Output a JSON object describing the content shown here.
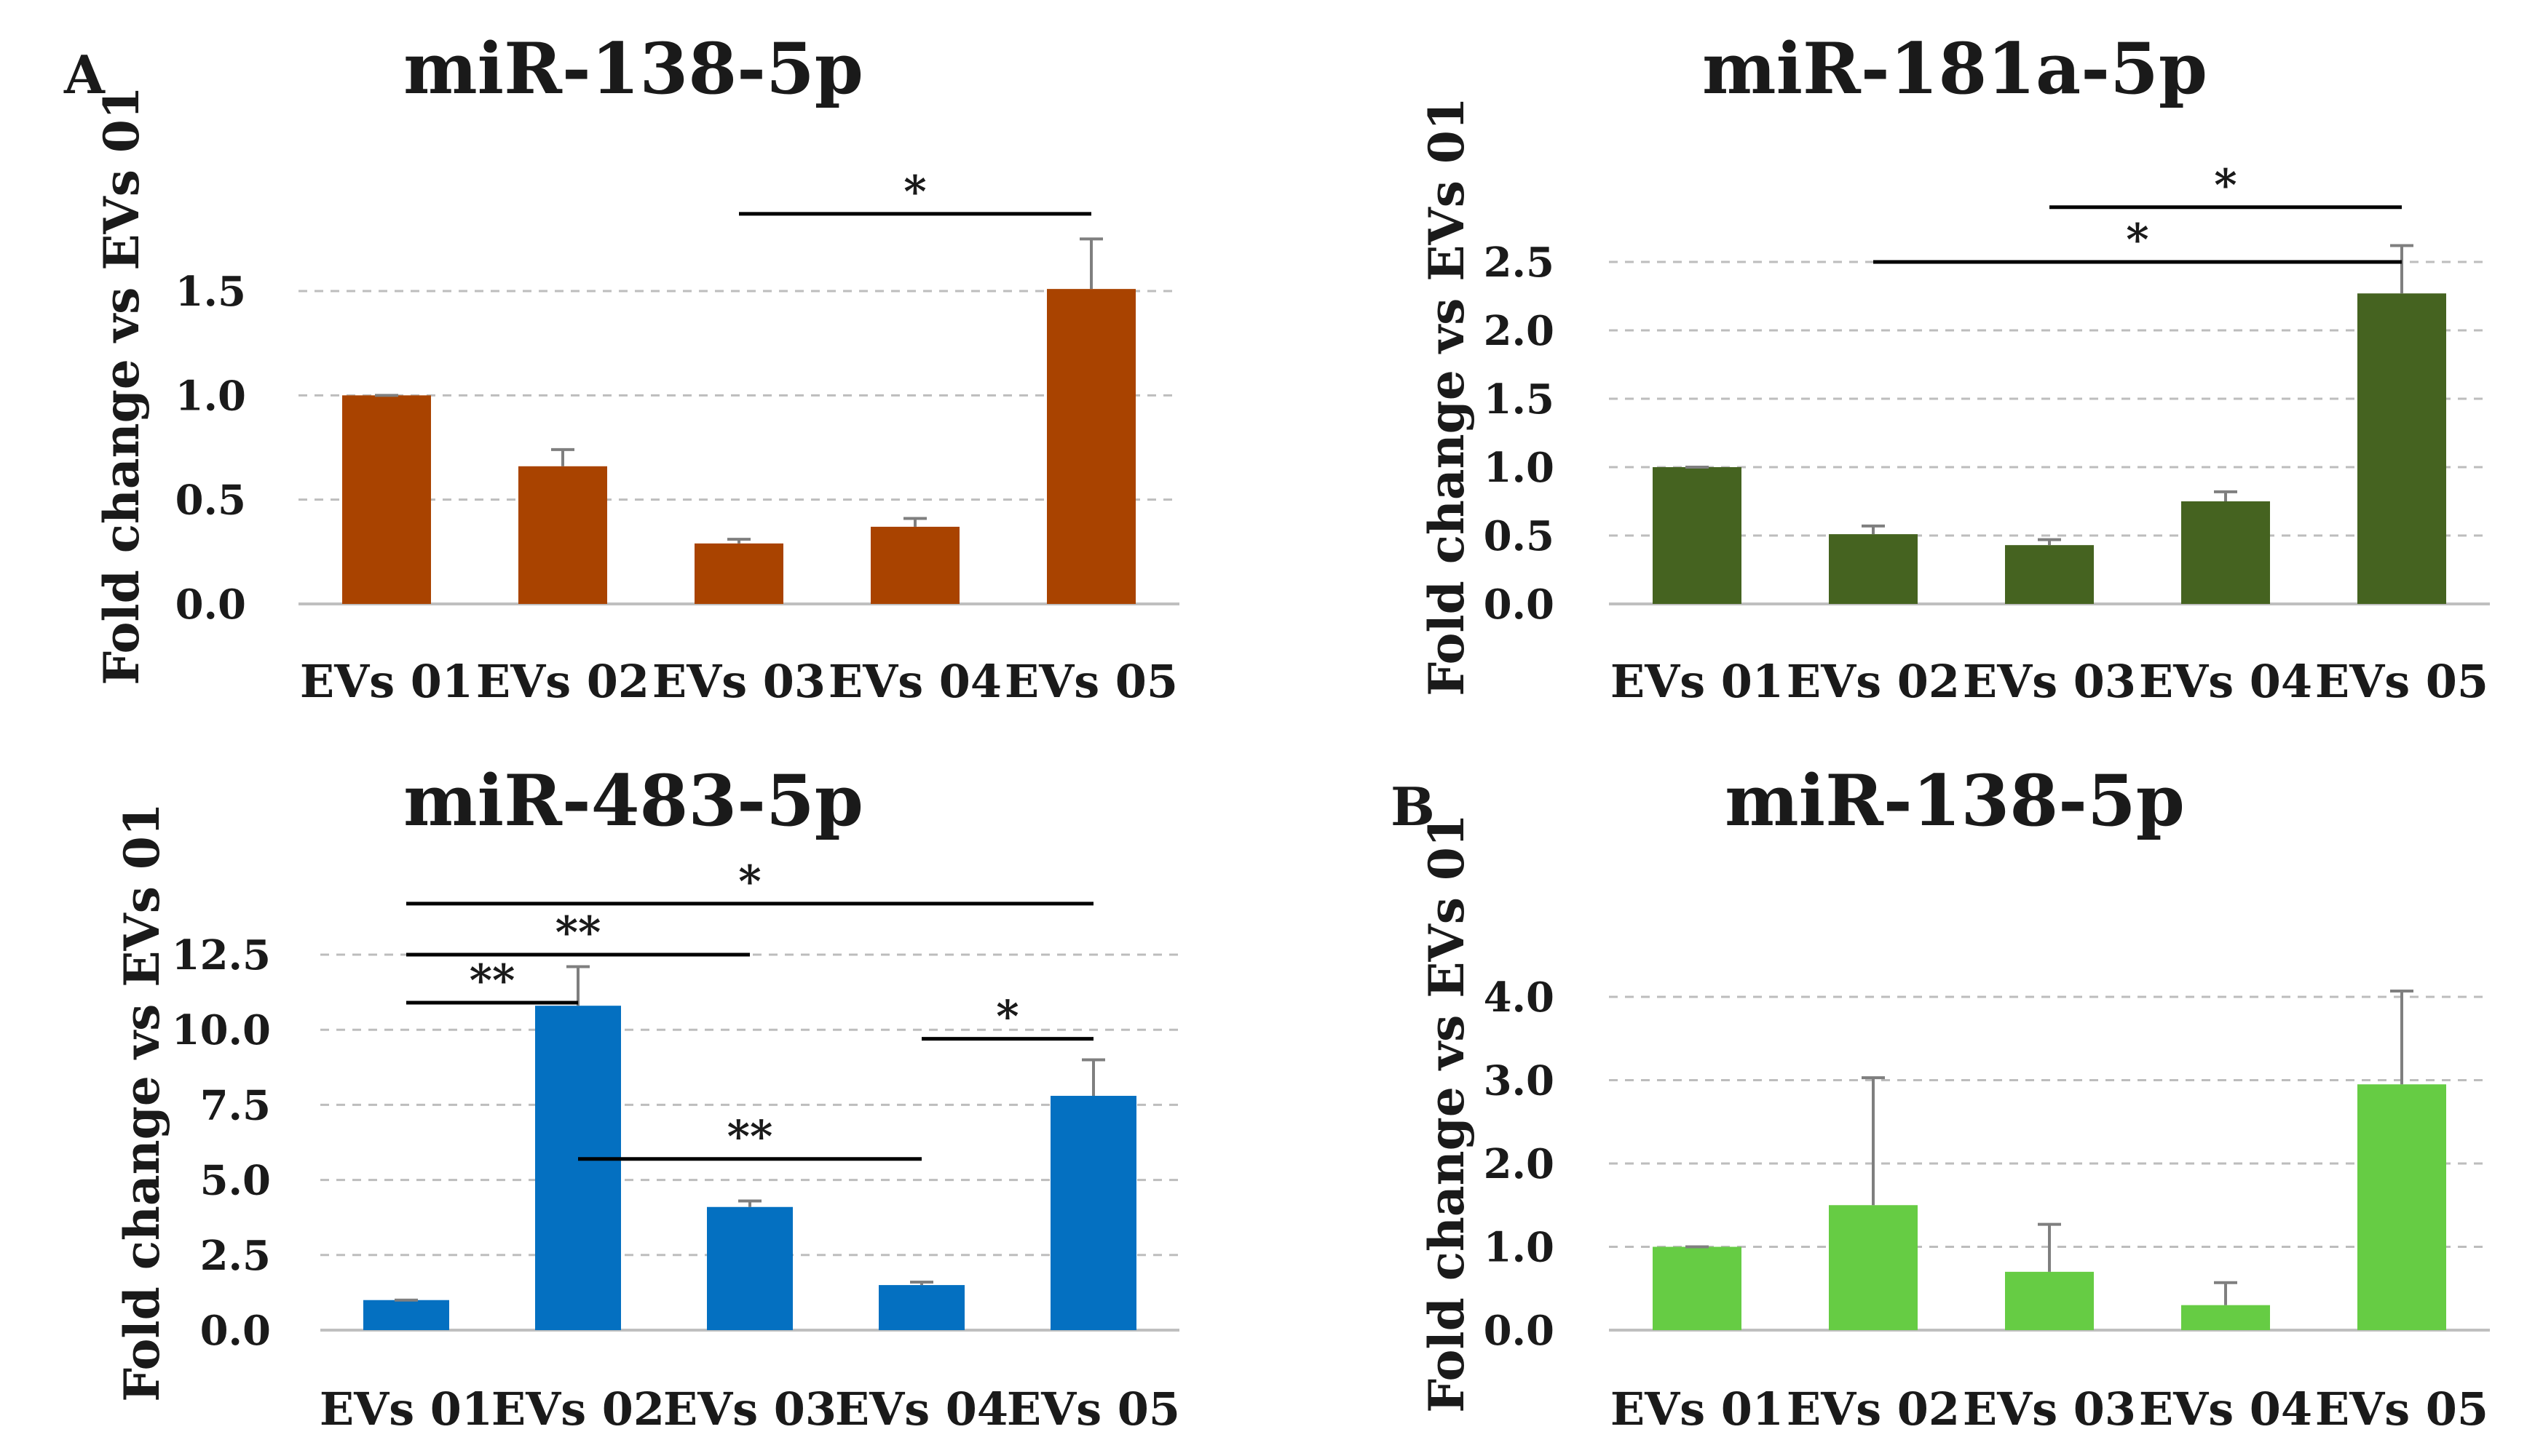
{
  "figure": {
    "panel_labels": [
      {
        "text": "A"
      },
      {
        "text": "B"
      }
    ]
  },
  "chart_data": [
    {
      "type": "bar",
      "title": "miR-138-5p",
      "xlabel": "",
      "ylabel": "Fold change vs EVs 01",
      "categories": [
        "EVs 01",
        "EVs 02",
        "EVs 03",
        "EVs 04",
        "EVs 05"
      ],
      "values": [
        1.0,
        0.66,
        0.29,
        0.37,
        1.51
      ],
      "errors": [
        0.0,
        0.08,
        0.02,
        0.04,
        0.24
      ],
      "ylim": [
        0,
        1.5
      ],
      "yticks": [
        0.0,
        0.5,
        1.0,
        1.5
      ],
      "ytick_labels": [
        "0.0",
        "0.5",
        "1.0",
        "1.5"
      ],
      "grid": true,
      "bar_color": "#a94300",
      "significance": [
        {
          "from": 2,
          "to": 4,
          "label": "*",
          "y": 1.87
        }
      ]
    },
    {
      "type": "bar",
      "title": "miR-181a-5p",
      "xlabel": "",
      "ylabel": "Fold change vs EVs 01",
      "categories": [
        "EVs 01",
        "EVs 02",
        "EVs 03",
        "EVs 04",
        "EVs 05"
      ],
      "values": [
        1.0,
        0.51,
        0.43,
        0.75,
        2.27
      ],
      "errors": [
        0.0,
        0.06,
        0.04,
        0.07,
        0.35
      ],
      "ylim": [
        0,
        2.5
      ],
      "yticks": [
        0.0,
        0.5,
        1.0,
        1.5,
        2.0,
        2.5
      ],
      "ytick_labels": [
        "0.0",
        "0.5",
        "1.0",
        "1.5",
        "2.0",
        "2.5"
      ],
      "grid": true,
      "bar_color": "#456320",
      "significance": [
        {
          "from": 2,
          "to": 4,
          "label": "*",
          "y": 2.9
        },
        {
          "from": 1,
          "to": 4,
          "label": "*",
          "y": 2.5
        }
      ]
    },
    {
      "type": "bar",
      "title": "miR-483-5p",
      "xlabel": "",
      "ylabel": "Fold change vs EVs 01",
      "categories": [
        "EVs 01",
        "EVs 02",
        "EVs 03",
        "EVs 04",
        "EVs 05"
      ],
      "values": [
        1.0,
        10.8,
        4.1,
        1.5,
        7.8
      ],
      "errors": [
        0.0,
        1.3,
        0.2,
        0.1,
        1.2
      ],
      "ylim": [
        0,
        12.5
      ],
      "yticks": [
        0.0,
        2.5,
        5.0,
        7.5,
        10.0,
        12.5
      ],
      "ytick_labels": [
        "0.0",
        "2.5",
        "5.0",
        "7.5",
        "10.0",
        "12.5"
      ],
      "grid": true,
      "bar_color": "#0470c1",
      "significance": [
        {
          "from": 0,
          "to": 4,
          "label": "*",
          "y": 14.2
        },
        {
          "from": 0,
          "to": 2,
          "label": "**",
          "y": 12.5
        },
        {
          "from": 0,
          "to": 1,
          "label": "**",
          "y": 10.9
        },
        {
          "from": 1,
          "to": 3,
          "label": "**",
          "y": 5.7
        },
        {
          "from": 3,
          "to": 4,
          "label": "*",
          "y": 9.7
        }
      ]
    },
    {
      "type": "bar",
      "title": "miR-138-5p",
      "xlabel": "",
      "ylabel": "Fold change vs EVs 01",
      "categories": [
        "EVs 01",
        "EVs 02",
        "EVs 03",
        "EVs 04",
        "EVs 05"
      ],
      "values": [
        1.0,
        1.5,
        0.7,
        0.3,
        2.95
      ],
      "errors": [
        0.0,
        1.53,
        0.57,
        0.27,
        1.12
      ],
      "ylim": [
        0,
        4.0
      ],
      "yticks": [
        0.0,
        1.0,
        2.0,
        3.0,
        4.0
      ],
      "ytick_labels": [
        "0.0",
        "1.0",
        "2.0",
        "3.0",
        "4.0"
      ],
      "grid": true,
      "bar_color": "#66cc44",
      "significance": []
    }
  ]
}
